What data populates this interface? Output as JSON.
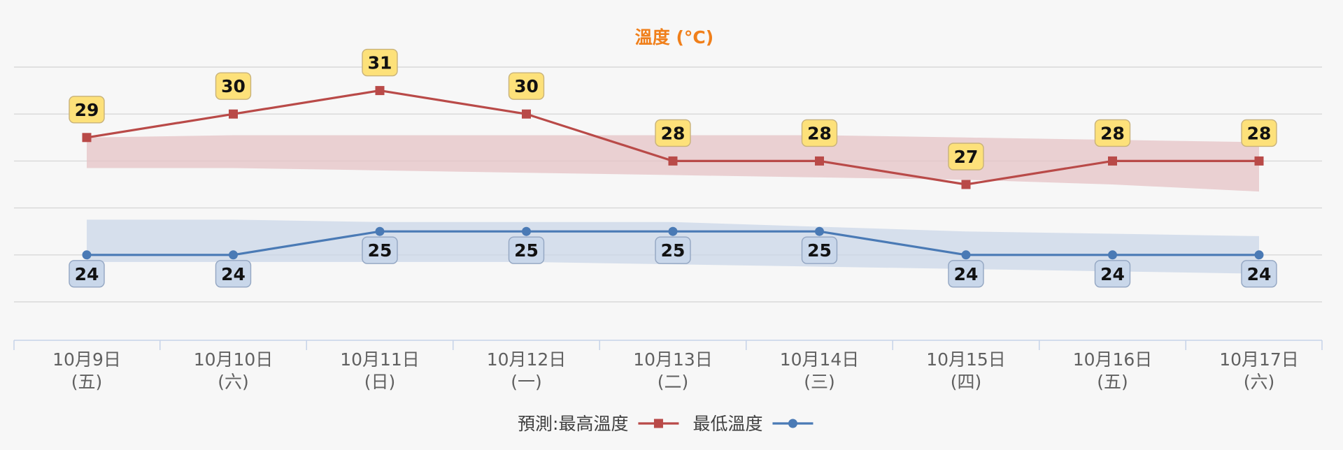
{
  "chart_data": {
    "type": "line",
    "title": "溫度 (°C)",
    "categories": [
      [
        "10月9日",
        "(五)"
      ],
      [
        "10月10日",
        "(六)"
      ],
      [
        "10月11日",
        "(日)"
      ],
      [
        "10月12日",
        "(一)"
      ],
      [
        "10月13日",
        "(二)"
      ],
      [
        "10月14日",
        "(三)"
      ],
      [
        "10月15日",
        "(四)"
      ],
      [
        "10月16日",
        "(五)"
      ],
      [
        "10月17日",
        "(六)"
      ]
    ],
    "series": [
      {
        "name": "最高溫度",
        "values": [
          29,
          30,
          31,
          30,
          28,
          28,
          27,
          28,
          28
        ],
        "color": "#b94a48",
        "marker": "square",
        "band_color": "#e6c3c6",
        "band": [
          [
            27.7,
            29.0
          ],
          [
            27.7,
            29.1
          ],
          [
            27.6,
            29.1
          ],
          [
            27.5,
            29.1
          ],
          [
            27.4,
            29.1
          ],
          [
            27.3,
            29.1
          ],
          [
            27.2,
            29.0
          ],
          [
            27.0,
            28.9
          ],
          [
            26.7,
            28.8
          ]
        ]
      },
      {
        "name": "最低溫度",
        "values": [
          24,
          24,
          25,
          25,
          25,
          25,
          24,
          24,
          24
        ],
        "color": "#4a7ab5",
        "marker": "circle",
        "band_color": "#cbd7e8",
        "band": [
          [
            23.7,
            25.5
          ],
          [
            23.7,
            25.5
          ],
          [
            23.7,
            25.4
          ],
          [
            23.7,
            25.4
          ],
          [
            23.6,
            25.4
          ],
          [
            23.5,
            25.2
          ],
          [
            23.4,
            25.0
          ],
          [
            23.3,
            24.9
          ],
          [
            23.2,
            24.8
          ]
        ]
      }
    ],
    "ylim": [
      22,
      32
    ],
    "grid": true,
    "legend": {
      "position": "bottom",
      "prefix": "預測: "
    },
    "title_color": "#f07f1a",
    "high_label_color": "#fde17a",
    "low_label_color": "#c9d7ea"
  }
}
